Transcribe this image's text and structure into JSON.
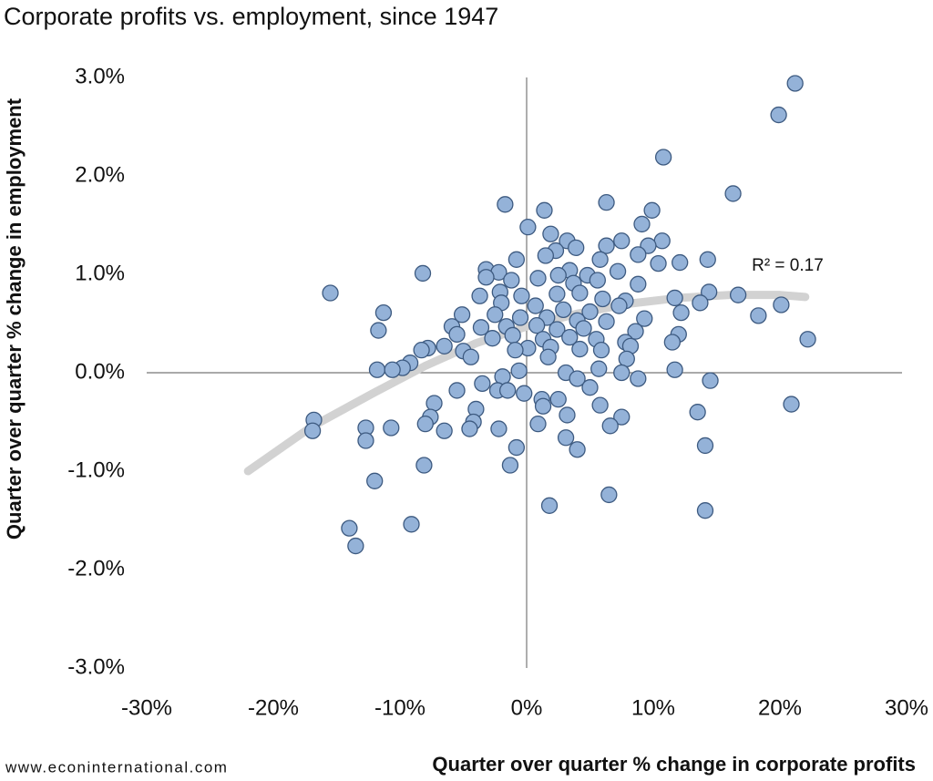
{
  "chart_data": {
    "type": "scatter",
    "title": "Corporate profits vs. employment, since 1947",
    "x_label": "Quarter over quarter % change in corporate profits",
    "y_label": "Quarter over quarter % change in employment",
    "source": "www.econinternational.com",
    "annotation": "R² = 0.17",
    "color": "#94b2d8",
    "x": [
      21.2,
      19.9,
      10.8,
      16.3,
      6.3,
      -1.7,
      1.4,
      9.9,
      0.1,
      1.9,
      9.1,
      3.2,
      7.5,
      10.7,
      9.6,
      3.9,
      2.3,
      6.3,
      8.8,
      1.5,
      5.8,
      14.3,
      10.4,
      -0.8,
      12.1,
      -3.2,
      -8.2,
      -2.2,
      3.4,
      7.2,
      4.8,
      2.5,
      -3.2,
      -1.2,
      0.9,
      3.7,
      5.6,
      8.8,
      -15.5,
      4.2,
      -2.1,
      -3.7,
      -0.4,
      2.4,
      6.0,
      7.8,
      14.4,
      16.7,
      13.7,
      11.7,
      -11.3,
      -5.1,
      -2.0,
      0.7,
      2.9,
      5.0,
      7.3,
      18.3,
      20.1,
      12.2,
      9.3,
      -2.5,
      -0.5,
      1.6,
      4.0,
      6.3,
      -5.9,
      -11.7,
      -3.6,
      -1.6,
      0.8,
      2.4,
      4.5,
      8.6,
      12.0,
      -5.5,
      -2.7,
      -1.1,
      1.3,
      3.4,
      5.5,
      7.8,
      11.5,
      22.2,
      -7.8,
      -6.5,
      -8.3,
      -5.0,
      0.1,
      -0.9,
      1.9,
      4.2,
      5.9,
      8.2,
      -4.4,
      -9.2,
      -9.8,
      -11.8,
      -10.6,
      1.7,
      7.9,
      11.7,
      -0.6,
      3.1,
      5.7,
      7.5,
      8.8,
      -1.9,
      4.0,
      5.0,
      -3.5,
      -5.5,
      -2.3,
      -1.5,
      -0.2,
      14.5,
      1.2,
      2.5,
      -7.3,
      -4.0,
      1.3,
      5.8,
      20.9,
      13.5,
      3.2,
      7.5,
      -7.6,
      -16.8,
      -4.2,
      -8.0,
      0.9,
      6.6,
      -16.9,
      -12.7,
      -10.7,
      -6.5,
      -2.2,
      -4.5,
      3.1,
      4.0,
      -12.7,
      -0.8,
      14.1,
      -8.1,
      -1.3,
      -12.0,
      6.5,
      1.8,
      14.1,
      -9.1,
      -14.0,
      -13.5
    ],
    "values": [
      2.94,
      2.62,
      2.19,
      1.82,
      1.73,
      1.71,
      1.65,
      1.65,
      1.48,
      1.41,
      1.51,
      1.34,
      1.34,
      1.34,
      1.29,
      1.27,
      1.24,
      1.29,
      1.2,
      1.19,
      1.15,
      1.15,
      1.11,
      1.15,
      1.12,
      1.05,
      1.01,
      1.02,
      1.04,
      1.03,
      0.99,
      0.99,
      0.97,
      0.94,
      0.96,
      0.91,
      0.94,
      0.9,
      0.81,
      0.81,
      0.82,
      0.78,
      0.78,
      0.8,
      0.75,
      0.73,
      0.82,
      0.79,
      0.71,
      0.76,
      0.61,
      0.59,
      0.71,
      0.68,
      0.64,
      0.62,
      0.68,
      0.58,
      0.69,
      0.61,
      0.55,
      0.59,
      0.56,
      0.56,
      0.53,
      0.52,
      0.47,
      0.43,
      0.46,
      0.47,
      0.48,
      0.44,
      0.45,
      0.42,
      0.39,
      0.39,
      0.35,
      0.38,
      0.34,
      0.36,
      0.34,
      0.31,
      0.31,
      0.34,
      0.25,
      0.27,
      0.23,
      0.22,
      0.25,
      0.23,
      0.26,
      0.24,
      0.23,
      0.27,
      0.16,
      0.1,
      0.05,
      0.03,
      0.03,
      0.16,
      0.14,
      0.03,
      0.02,
      0.0,
      0.04,
      0.0,
      -0.06,
      -0.04,
      -0.06,
      -0.15,
      -0.11,
      -0.18,
      -0.18,
      -0.18,
      -0.21,
      -0.08,
      -0.27,
      -0.27,
      -0.31,
      -0.37,
      -0.34,
      -0.33,
      -0.32,
      -0.4,
      -0.43,
      -0.45,
      -0.45,
      -0.48,
      -0.5,
      -0.52,
      -0.52,
      -0.54,
      -0.59,
      -0.56,
      -0.56,
      -0.59,
      -0.57,
      -0.57,
      -0.66,
      -0.78,
      -0.69,
      -0.76,
      -0.74,
      -0.94,
      -0.94,
      -1.1,
      -1.24,
      -1.35,
      -1.4,
      -1.54,
      -1.58,
      -1.76
    ],
    "trendline": {
      "color": "#d2d2d2",
      "x": [
        -22,
        -17,
        -12,
        -8,
        -4,
        0,
        4,
        8,
        12,
        16,
        20,
        22
      ],
      "values": [
        -1.0,
        -0.55,
        -0.2,
        0.07,
        0.3,
        0.47,
        0.6,
        0.7,
        0.76,
        0.79,
        0.79,
        0.77
      ]
    },
    "xlim": [
      -30,
      30
    ],
    "xticks": [
      {
        "value": -30,
        "label": "-30%"
      },
      {
        "value": -20,
        "label": "-20%"
      },
      {
        "value": -10,
        "label": "-10%"
      },
      {
        "value": 0,
        "label": "0%"
      },
      {
        "value": 10,
        "label": "10%"
      },
      {
        "value": 20,
        "label": "20%"
      },
      {
        "value": 30,
        "label": "30%"
      }
    ],
    "ylim": [
      -3,
      3
    ],
    "yticks": [
      {
        "value": -3,
        "label": "-3.0%"
      },
      {
        "value": -2,
        "label": "-2.0%"
      },
      {
        "value": -1,
        "label": "-1.0%"
      },
      {
        "value": 0,
        "label": "0.0%"
      },
      {
        "value": 1,
        "label": "1.0%"
      },
      {
        "value": 2,
        "label": "2.0%"
      },
      {
        "value": 3,
        "label": "3.0%"
      }
    ],
    "grid": false
  }
}
